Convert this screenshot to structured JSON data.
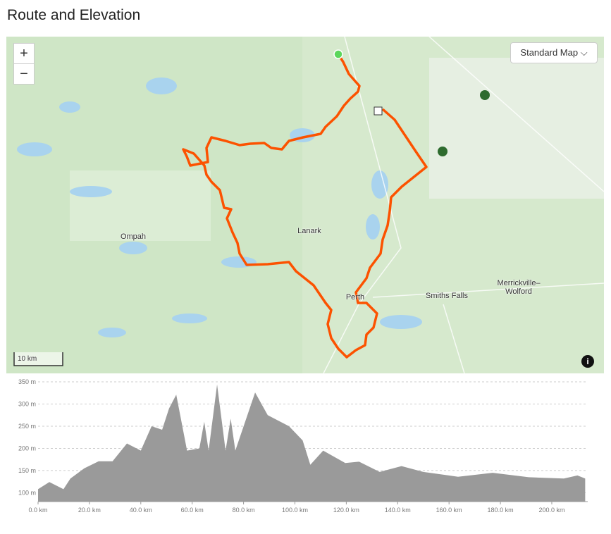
{
  "header": {
    "title": "Route and Elevation"
  },
  "map": {
    "zoom_in": "+",
    "zoom_out": "−",
    "map_type": "Standard Map",
    "scale": "10 km",
    "labels": [
      "Ompah",
      "Lanark",
      "Perth",
      "Smiths Falls",
      "Merrickville–Wolford"
    ]
  },
  "chart_data": {
    "type": "area",
    "color": "#9a9a9a",
    "grid": true,
    "x": [
      0,
      4.4,
      9.9,
      12.6,
      18,
      23.6,
      29,
      34.6,
      40,
      44.2,
      48.3,
      51,
      53.8,
      58,
      62.8,
      64.7,
      66.4,
      69.7,
      73,
      75,
      76.8,
      84.5,
      89.4,
      97.7,
      103,
      106,
      111,
      119.6,
      125,
      133,
      141.5,
      150,
      163.5,
      177,
      191,
      204.7,
      210,
      213
    ],
    "values": [
      108,
      124,
      108,
      132,
      155,
      171,
      171,
      211,
      195,
      250,
      242,
      290,
      321,
      195,
      200,
      260,
      195,
      344,
      195,
      267,
      195,
      326,
      275,
      250,
      218,
      163,
      195,
      167,
      170,
      147,
      160,
      147,
      136,
      145,
      135,
      132,
      139,
      132
    ],
    "xlim": [
      0,
      214
    ],
    "ylim": [
      80,
      350
    ],
    "xticks": [
      {
        "value": 0,
        "label": "0.0 km"
      },
      {
        "value": 20,
        "label": "20.0 km"
      },
      {
        "value": 40,
        "label": "40.0 km"
      },
      {
        "value": 60,
        "label": "60.0 km"
      },
      {
        "value": 80,
        "label": "80.0 km"
      },
      {
        "value": 100,
        "label": "100.0 km"
      },
      {
        "value": 120,
        "label": "120.0 km"
      },
      {
        "value": 140,
        "label": "140.0 km"
      },
      {
        "value": 160,
        "label": "160.0 km"
      },
      {
        "value": 180,
        "label": "180.0 km"
      },
      {
        "value": 200,
        "label": "200.0 km"
      }
    ],
    "yticks": [
      {
        "value": 100,
        "label": "100 m"
      },
      {
        "value": 150,
        "label": "150 m"
      },
      {
        "value": 200,
        "label": "200 m"
      },
      {
        "value": 250,
        "label": "250 m"
      },
      {
        "value": 300,
        "label": "300 m"
      },
      {
        "value": 350,
        "label": "350 m"
      }
    ]
  }
}
